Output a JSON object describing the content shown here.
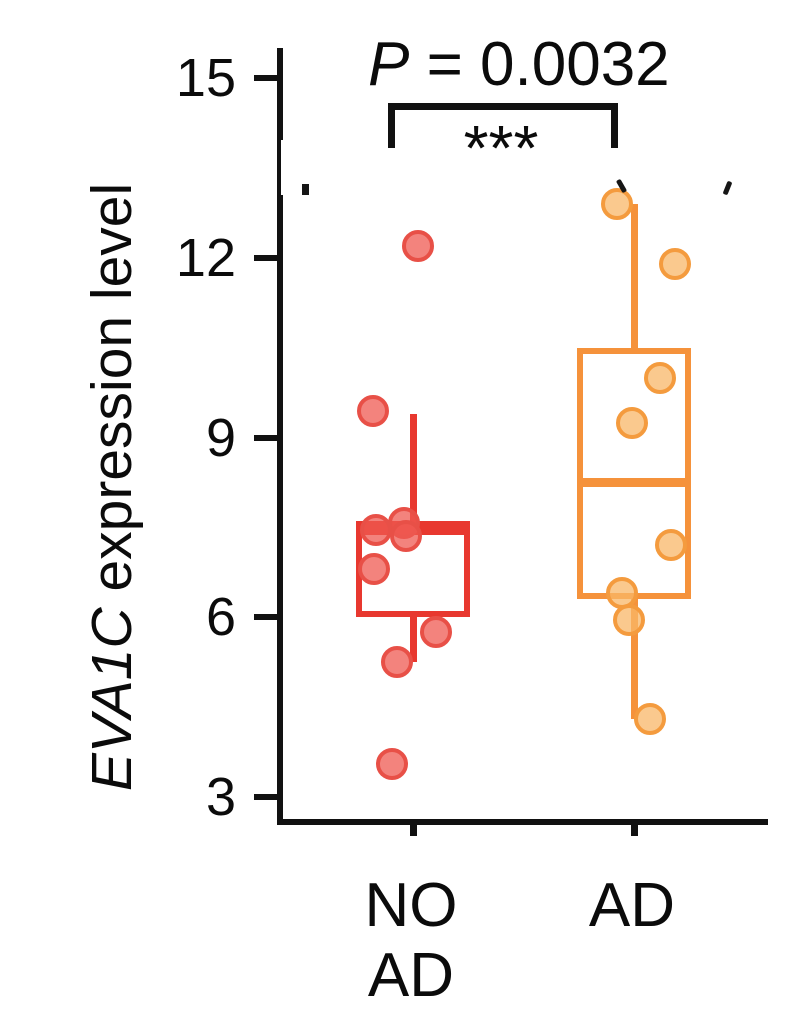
{
  "figure_title": "EVA1C expression box plot",
  "y_axis": {
    "label_italic": "EVA1C",
    "label_rest": " expression level",
    "tick_labels": [
      "15",
      "12",
      "9",
      "6",
      "3"
    ]
  },
  "annotation": {
    "p_label": "P",
    "p_rest": " = 0.0032",
    "stars": "***"
  },
  "chart_data": {
    "type": "box",
    "title": "",
    "ylabel": "EVA1C expression level",
    "xlabel": "",
    "ylim": [
      2.6,
      15.4
    ],
    "yticks": [
      15,
      12,
      9,
      6,
      3
    ],
    "grid": false,
    "legend": "none",
    "significance": {
      "comparison": [
        "NO AD",
        "AD"
      ],
      "p_value": "P = 0.0032",
      "stars": "***"
    },
    "groups": [
      {
        "label": "NO AD",
        "label_lines": [
          "NO",
          "AD"
        ],
        "line_color": "#e8382f",
        "point_fill": "rgba(239,90,82,0.75)",
        "point_stroke": "#e85047",
        "box": {
          "whisker_low": 5.25,
          "q1": 6.0,
          "median": 7.45,
          "q3": 7.6,
          "whisker_high": 9.4
        },
        "points": [
          {
            "v": 12.2,
            "dx": 5
          },
          {
            "v": 9.45,
            "dx": -40
          },
          {
            "v": 7.58,
            "dx": -9
          },
          {
            "v": 7.45,
            "dx": -37
          },
          {
            "v": 7.35,
            "dx": -7
          },
          {
            "v": 6.8,
            "dx": -39
          },
          {
            "v": 5.75,
            "dx": 23
          },
          {
            "v": 5.25,
            "dx": -16
          },
          {
            "v": 3.55,
            "dx": -21
          }
        ]
      },
      {
        "label": "AD",
        "label_lines": [
          "AD"
        ],
        "line_color": "#f5923b",
        "point_fill": "rgba(248,183,104,0.75)",
        "point_stroke": "#f49b3e",
        "box": {
          "whisker_low": 4.3,
          "q1": 6.3,
          "median": 8.25,
          "q3": 10.5,
          "whisker_high": 12.9
        },
        "points": [
          {
            "v": 12.9,
            "dx": -17
          },
          {
            "v": 11.9,
            "dx": 41
          },
          {
            "v": 10.0,
            "dx": 26
          },
          {
            "v": 9.25,
            "dx": -2
          },
          {
            "v": 7.2,
            "dx": 37
          },
          {
            "v": 6.4,
            "dx": -12
          },
          {
            "v": 5.95,
            "dx": -5
          },
          {
            "v": 4.3,
            "dx": 16
          }
        ]
      }
    ]
  }
}
